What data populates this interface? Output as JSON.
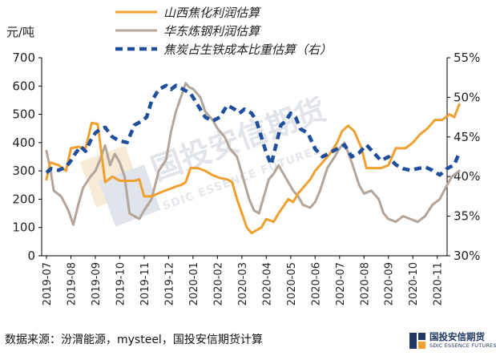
{
  "chart_data": {
    "type": "line",
    "title": "",
    "left_axis": {
      "unit_label": "元/吨",
      "ylim": [
        0,
        700
      ],
      "ticks": [
        0,
        100,
        200,
        300,
        400,
        500,
        600,
        700
      ]
    },
    "right_axis": {
      "ylim": [
        30,
        55
      ],
      "ticks": [
        "30%",
        "35%",
        "40%",
        "45%",
        "50%",
        "55%"
      ],
      "tick_values": [
        30,
        35,
        40,
        45,
        50,
        55
      ]
    },
    "x_categories": [
      "2019-07",
      "2019-08",
      "2019-09",
      "2019-10",
      "2019-11",
      "2019-12",
      "2020-01",
      "2020-02",
      "2020-03",
      "2020-04",
      "2020-05",
      "2020-06",
      "2020-07",
      "2020-08",
      "2020-09",
      "2020-10",
      "2020-11"
    ],
    "grid": false,
    "legend_placement": "top-center",
    "series": [
      {
        "name": "山西焦化利润估算",
        "axis": "left",
        "color": "#f0a030",
        "style": "solid",
        "points": [
          [
            0,
            270
          ],
          [
            0.15,
            330
          ],
          [
            0.5,
            320
          ],
          [
            0.8,
            300
          ],
          [
            1.0,
            380
          ],
          [
            1.3,
            385
          ],
          [
            1.6,
            380
          ],
          [
            1.85,
            470
          ],
          [
            2.1,
            465
          ],
          [
            2.4,
            260
          ],
          [
            2.7,
            280
          ],
          [
            3.0,
            265
          ],
          [
            3.3,
            265
          ],
          [
            3.6,
            265
          ],
          [
            3.8,
            270
          ],
          [
            4.0,
            210
          ],
          [
            4.3,
            210
          ],
          [
            4.7,
            225
          ],
          [
            5.0,
            235
          ],
          [
            5.3,
            245
          ],
          [
            5.5,
            250
          ],
          [
            5.7,
            260
          ],
          [
            5.9,
            310
          ],
          [
            6.2,
            310
          ],
          [
            6.5,
            300
          ],
          [
            6.8,
            285
          ],
          [
            7.1,
            275
          ],
          [
            7.4,
            270
          ],
          [
            7.6,
            260
          ],
          [
            7.8,
            200
          ],
          [
            8.0,
            150
          ],
          [
            8.2,
            100
          ],
          [
            8.4,
            80
          ],
          [
            8.6,
            90
          ],
          [
            8.8,
            100
          ],
          [
            9.0,
            130
          ],
          [
            9.3,
            120
          ],
          [
            9.5,
            150
          ],
          [
            9.7,
            175
          ],
          [
            9.9,
            200
          ],
          [
            10.1,
            190
          ],
          [
            10.3,
            220
          ],
          [
            10.5,
            240
          ],
          [
            10.8,
            270
          ],
          [
            11.0,
            300
          ],
          [
            11.3,
            330
          ],
          [
            11.6,
            360
          ],
          [
            11.9,
            400
          ],
          [
            12.1,
            440
          ],
          [
            12.35,
            460
          ],
          [
            12.6,
            440
          ],
          [
            12.9,
            380
          ],
          [
            13.1,
            310
          ],
          [
            13.4,
            310
          ],
          [
            13.7,
            310
          ],
          [
            14.0,
            320
          ],
          [
            14.3,
            380
          ],
          [
            14.7,
            380
          ],
          [
            15.0,
            400
          ],
          [
            15.3,
            430
          ],
          [
            15.6,
            450
          ],
          [
            15.9,
            480
          ],
          [
            16.2,
            480
          ],
          [
            16.5,
            500
          ],
          [
            16.7,
            490
          ],
          [
            16.9,
            535
          ]
        ]
      },
      {
        "name": "华东炼钢利润估算",
        "axis": "left",
        "color": "#b3a59a",
        "style": "solid",
        "points": [
          [
            0,
            370
          ],
          [
            0.15,
            310
          ],
          [
            0.3,
            230
          ],
          [
            0.6,
            210
          ],
          [
            0.9,
            160
          ],
          [
            1.1,
            110
          ],
          [
            1.3,
            180
          ],
          [
            1.5,
            240
          ],
          [
            1.8,
            280
          ],
          [
            2.0,
            300
          ],
          [
            2.2,
            340
          ],
          [
            2.4,
            390
          ],
          [
            2.6,
            320
          ],
          [
            2.8,
            360
          ],
          [
            3.0,
            330
          ],
          [
            3.2,
            280
          ],
          [
            3.4,
            150
          ],
          [
            3.6,
            140
          ],
          [
            3.8,
            130
          ],
          [
            4.0,
            160
          ],
          [
            4.3,
            200
          ],
          [
            4.6,
            300
          ],
          [
            4.9,
            340
          ],
          [
            5.1,
            440
          ],
          [
            5.3,
            510
          ],
          [
            5.5,
            560
          ],
          [
            5.7,
            610
          ],
          [
            5.85,
            595
          ],
          [
            6.0,
            590
          ],
          [
            6.3,
            560
          ],
          [
            6.5,
            510
          ],
          [
            6.8,
            480
          ],
          [
            7.0,
            450
          ],
          [
            7.3,
            420
          ],
          [
            7.5,
            380
          ],
          [
            7.8,
            350
          ],
          [
            8.1,
            260
          ],
          [
            8.3,
            200
          ],
          [
            8.5,
            160
          ],
          [
            8.7,
            150
          ],
          [
            8.9,
            210
          ],
          [
            9.1,
            270
          ],
          [
            9.3,
            290
          ],
          [
            9.5,
            320
          ],
          [
            9.7,
            290
          ],
          [
            9.9,
            260
          ],
          [
            10.1,
            230
          ],
          [
            10.3,
            210
          ],
          [
            10.5,
            180
          ],
          [
            10.8,
            170
          ],
          [
            11.0,
            190
          ],
          [
            11.2,
            230
          ],
          [
            11.5,
            310
          ],
          [
            11.8,
            350
          ],
          [
            12.0,
            380
          ],
          [
            12.2,
            400
          ],
          [
            12.5,
            330
          ],
          [
            12.8,
            250
          ],
          [
            13.0,
            220
          ],
          [
            13.3,
            230
          ],
          [
            13.6,
            200
          ],
          [
            13.8,
            150
          ],
          [
            14.0,
            130
          ],
          [
            14.3,
            120
          ],
          [
            14.6,
            140
          ],
          [
            14.9,
            130
          ],
          [
            15.2,
            120
          ],
          [
            15.5,
            140
          ],
          [
            15.8,
            180
          ],
          [
            16.1,
            200
          ],
          [
            16.4,
            250
          ],
          [
            16.6,
            280
          ],
          [
            16.9,
            300
          ]
        ]
      },
      {
        "name": "焦炭占生铁成本比重估算（右）",
        "axis": "right",
        "color": "#1f4e9c",
        "style": "dashed",
        "points": [
          [
            0,
            40.5
          ],
          [
            0.2,
            41.0
          ],
          [
            0.5,
            40.8
          ],
          [
            0.8,
            41.2
          ],
          [
            1.0,
            42.0
          ],
          [
            1.2,
            43.0
          ],
          [
            1.4,
            43.8
          ],
          [
            1.6,
            43.2
          ],
          [
            1.8,
            44.5
          ],
          [
            2.0,
            45.5
          ],
          [
            2.2,
            46.0
          ],
          [
            2.4,
            46.2
          ],
          [
            2.7,
            45.0
          ],
          [
            3.0,
            44.5
          ],
          [
            3.3,
            44.3
          ],
          [
            3.6,
            46.5
          ],
          [
            3.9,
            47.0
          ],
          [
            4.1,
            47.5
          ],
          [
            4.3,
            49.5
          ],
          [
            4.6,
            51.0
          ],
          [
            4.9,
            51.5
          ],
          [
            5.1,
            51.0
          ],
          [
            5.3,
            51.5
          ],
          [
            5.6,
            51.0
          ],
          [
            5.9,
            50.5
          ],
          [
            6.2,
            49.0
          ],
          [
            6.5,
            47.5
          ],
          [
            6.8,
            47.0
          ],
          [
            7.1,
            47.5
          ],
          [
            7.4,
            49.0
          ],
          [
            7.7,
            48.5
          ],
          [
            7.9,
            48.0
          ],
          [
            8.1,
            48.5
          ],
          [
            8.4,
            48.0
          ],
          [
            8.6,
            47.0
          ],
          [
            8.8,
            45.0
          ],
          [
            9.0,
            43.0
          ],
          [
            9.2,
            41.5
          ],
          [
            9.4,
            44.0
          ],
          [
            9.6,
            46.5
          ],
          [
            9.8,
            47.0
          ],
          [
            10.0,
            48.0
          ],
          [
            10.2,
            47.5
          ],
          [
            10.4,
            46.0
          ],
          [
            10.7,
            45.5
          ],
          [
            11.0,
            43.5
          ],
          [
            11.3,
            42.5
          ],
          [
            11.6,
            43.0
          ],
          [
            11.9,
            43.5
          ],
          [
            12.2,
            44.0
          ],
          [
            12.5,
            42.5
          ],
          [
            12.8,
            43.0
          ],
          [
            13.1,
            44.0
          ],
          [
            13.4,
            43.0
          ],
          [
            13.7,
            42.0
          ],
          [
            14.0,
            42.5
          ],
          [
            14.3,
            41.5
          ],
          [
            14.6,
            41.0
          ],
          [
            14.9,
            40.8
          ],
          [
            15.2,
            41.0
          ],
          [
            15.5,
            41.2
          ],
          [
            15.8,
            40.8
          ],
          [
            16.1,
            40.2
          ],
          [
            16.4,
            41.0
          ],
          [
            16.7,
            41.5
          ],
          [
            16.9,
            43.0
          ]
        ]
      }
    ]
  },
  "source_text": "数据来源：汾渭能源，mysteel，国投安信期货计算",
  "watermark": {
    "cn": "国投安信期货",
    "en": "SDIC ESSENCE FUTURES"
  },
  "logo": {
    "cn": "国投安信期货",
    "en": "SDIC ESSENCE FUTURES"
  }
}
